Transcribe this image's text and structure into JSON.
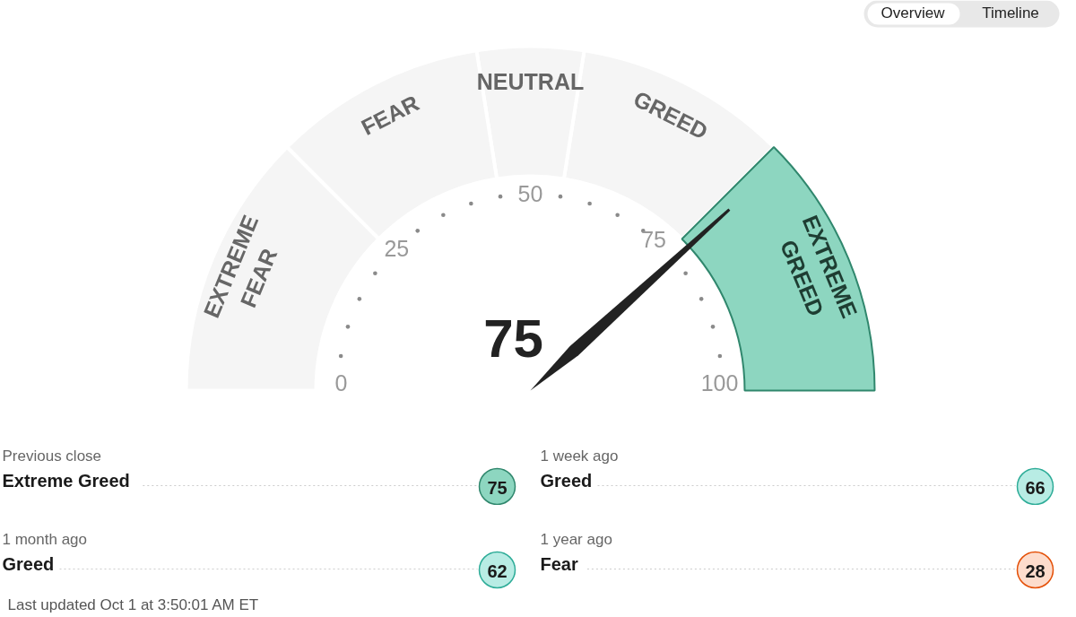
{
  "chart_data": [
    {
      "type": "other",
      "annotations": [
        "Overview",
        "Timeline"
      ]
    },
    {
      "type": "donut",
      "categories": [
        "EXTREME GREED",
        "GREED",
        "NEUTRAL",
        "FEAR",
        "EXTREME FEAR"
      ],
      "values": [
        25,
        20,
        10,
        20,
        25
      ],
      "colors": [
        "#8dd6c0",
        "#f5f5f5",
        "#f5f5f5",
        "#f5f5f5",
        "#f5f5f5"
      ],
      "needle": "EXTREME GREED",
      "annotations": [
        "0",
        "25",
        "50",
        "75",
        "100",
        "75"
      ]
    },
    {
      "type": "other",
      "title": "Previous close",
      "subtitle": "Extreme Greed",
      "values": [
        75
      ],
      "colors": [
        "#8dd6c0"
      ],
      "data_labels": true
    },
    {
      "type": "other",
      "title": "1 week ago",
      "subtitle": "Greed",
      "values": [
        66
      ],
      "colors": [
        "#b8ece4"
      ],
      "data_labels": true
    },
    {
      "type": "other",
      "title": "1 month ago",
      "subtitle": "Greed",
      "values": [
        62
      ],
      "colors": [
        "#b8ece4"
      ],
      "data_labels": true,
      "annotations": [
        "Last updated Oct 1 at 3:50:01 AM ET"
      ]
    },
    {
      "type": "other",
      "title": "1 year ago",
      "subtitle": "Fear",
      "values": [
        28
      ],
      "colors": [
        "#fddccc"
      ],
      "data_labels": true
    }
  ]
}
